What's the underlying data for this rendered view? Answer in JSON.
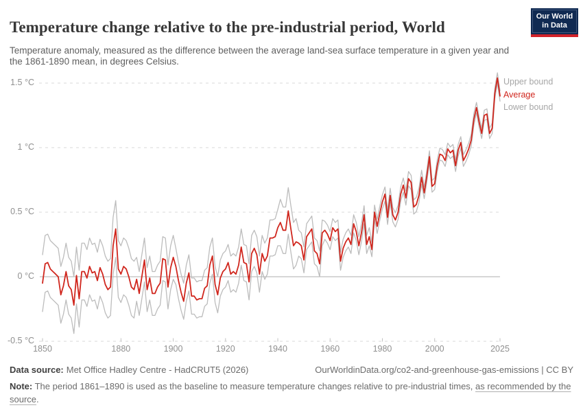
{
  "header": {
    "title": "Temperature change relative to the pre-industrial period, World",
    "subtitle": "Temperature anomaly, measured as the difference between the average land-sea surface temperature in a given year and the 1861-1890 mean, in degrees Celsius.",
    "logo": {
      "line1": "Our World",
      "line2": "in Data",
      "bg_color": "#102a52",
      "bar_color": "#d2232a"
    }
  },
  "legend": [
    {
      "label": "Upper bound",
      "color": "#a6a6a6"
    },
    {
      "label": "Average",
      "color": "#d0261d"
    },
    {
      "label": "Lower bound",
      "color": "#a6a6a6"
    }
  ],
  "colors": {
    "average_line": "#d0261d",
    "bound_line": "#bcbcbc",
    "gridline": "#dadada",
    "zero_line": "#adadad",
    "tick_mark": "#c2c2c2",
    "axis_text": "#8f8f8f"
  },
  "chart_data": {
    "type": "line",
    "title": "Temperature change relative to the pre-industrial period, World",
    "x_start": 1850,
    "x_end": 2025,
    "x_step": 1,
    "xlim": [
      1850,
      2025
    ],
    "ylim": [
      -0.5,
      1.6
    ],
    "grid": "horizontal dashed",
    "legend_position": "right of line ends",
    "x_ticks": [
      1850,
      1880,
      1900,
      1920,
      1940,
      1960,
      1980,
      2000,
      2025
    ],
    "y_ticks": [
      {
        "value": 1.5,
        "label": "1.5 °C"
      },
      {
        "value": 1.0,
        "label": "1 °C"
      },
      {
        "value": 0.5,
        "label": "0.5 °C"
      },
      {
        "value": 0.0,
        "label": "0 °C"
      },
      {
        "value": -0.5,
        "label": "-0.5 °C"
      }
    ],
    "series": [
      {
        "name": "Average",
        "color": "#d0261d",
        "values": [
          -0.05,
          0.1,
          0.11,
          0.06,
          0.04,
          0.02,
          0.0,
          -0.14,
          -0.07,
          0.04,
          -0.07,
          -0.1,
          -0.22,
          0.01,
          -0.17,
          0.04,
          0.04,
          -0.01,
          0.08,
          0.03,
          0.04,
          -0.03,
          0.07,
          0.02,
          -0.06,
          -0.1,
          -0.08,
          0.24,
          0.37,
          0.06,
          0.02,
          0.08,
          0.06,
          0.0,
          -0.08,
          -0.1,
          -0.02,
          -0.13,
          0.0,
          0.13,
          -0.1,
          -0.01,
          -0.13,
          -0.13,
          -0.08,
          -0.05,
          0.14,
          0.13,
          -0.08,
          0.07,
          0.15,
          0.08,
          -0.03,
          -0.12,
          -0.19,
          -0.05,
          0.03,
          -0.15,
          -0.15,
          -0.18,
          -0.17,
          -0.17,
          -0.09,
          -0.07,
          0.09,
          0.16,
          -0.06,
          -0.14,
          -0.01,
          0.04,
          0.06,
          0.11,
          0.02,
          0.04,
          0.02,
          0.09,
          0.23,
          0.11,
          0.1,
          -0.04,
          0.18,
          0.22,
          0.17,
          0.02,
          0.18,
          0.12,
          0.16,
          0.3,
          0.3,
          0.31,
          0.38,
          0.42,
          0.36,
          0.36,
          0.51,
          0.37,
          0.24,
          0.27,
          0.26,
          0.24,
          0.13,
          0.31,
          0.34,
          0.37,
          0.2,
          0.18,
          0.1,
          0.34,
          0.36,
          0.33,
          0.28,
          0.38,
          0.35,
          0.37,
          0.12,
          0.22,
          0.27,
          0.3,
          0.25,
          0.41,
          0.35,
          0.24,
          0.34,
          0.48,
          0.25,
          0.31,
          0.21,
          0.5,
          0.39,
          0.49,
          0.58,
          0.64,
          0.46,
          0.63,
          0.48,
          0.44,
          0.5,
          0.64,
          0.71,
          0.61,
          0.76,
          0.73,
          0.54,
          0.56,
          0.63,
          0.77,
          0.65,
          0.78,
          0.93,
          0.7,
          0.72,
          0.86,
          0.95,
          0.94,
          0.9,
          0.99,
          0.96,
          0.98,
          0.86,
          0.98,
          1.04,
          0.9,
          0.94,
          0.99,
          1.06,
          1.22,
          1.31,
          1.2,
          1.11,
          1.25,
          1.26,
          1.11,
          1.15,
          1.42,
          1.54,
          1.4
        ]
      },
      {
        "name": "Upper bound",
        "color": "#bcbcbc",
        "derivation": "Average + uncertainty_width"
      },
      {
        "name": "Lower bound",
        "color": "#bcbcbc",
        "derivation": "Average - uncertainty_width"
      }
    ],
    "uncertainty_width_segments": [
      {
        "start": 1850,
        "end": 1885,
        "width": 0.22
      },
      {
        "start": 1886,
        "end": 1900,
        "width": 0.17
      },
      {
        "start": 1901,
        "end": 1940,
        "width": 0.14
      },
      {
        "start": 1941,
        "end": 1947,
        "width": 0.18
      },
      {
        "start": 1948,
        "end": 1957,
        "width": 0.1
      },
      {
        "start": 1958,
        "end": 1975,
        "width": 0.07
      },
      {
        "start": 1976,
        "end": 1995,
        "width": 0.055
      },
      {
        "start": 1996,
        "end": 2015,
        "width": 0.045
      },
      {
        "start": 2016,
        "end": 2025,
        "width": 0.04
      }
    ]
  },
  "footer": {
    "datasource_label": "Data source:",
    "datasource_value": "Met Office Hadley Centre - HadCRUT5 (2026)",
    "url": "OurWorldinData.org/co2-and-greenhouse-gas-emissions | CC BY",
    "note_label": "Note:",
    "note_text": " The period 1861–1890 is used as the baseline to measure temperature changes relative to pre-industrial times, ",
    "note_link": "as recommended by the source",
    "note_suffix": "."
  }
}
